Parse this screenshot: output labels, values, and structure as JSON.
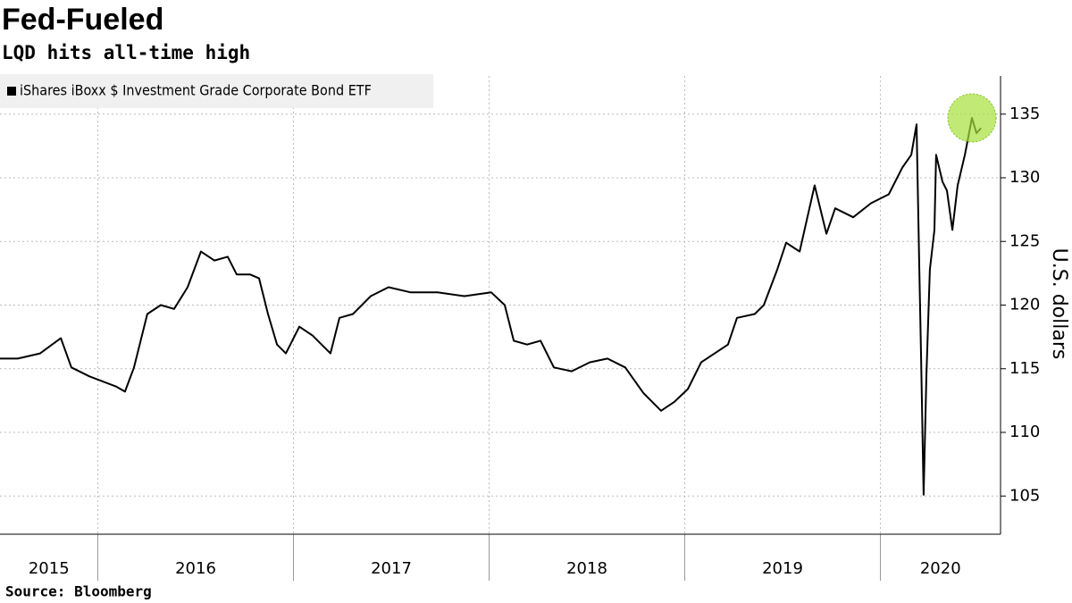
{
  "chart_data": {
    "type": "line",
    "title": "Fed-Fueled",
    "subtitle": "LQD hits all-time high",
    "y_label": "U.S. dollars",
    "source": "Source: Bloomberg",
    "x": [
      2015.5,
      2015.591,
      2015.705,
      2015.811,
      2015.865,
      2015.957,
      2016.094,
      2016.139,
      2016.185,
      2016.253,
      2016.322,
      2016.39,
      2016.459,
      2016.527,
      2016.596,
      2016.664,
      2016.71,
      2016.779,
      2016.824,
      2016.87,
      2016.916,
      2016.961,
      2017.03,
      2017.098,
      2017.189,
      2017.235,
      2017.304,
      2017.395,
      2017.486,
      2017.6,
      2017.737,
      2017.874,
      2018.011,
      2018.08,
      2018.126,
      2018.194,
      2018.263,
      2018.331,
      2018.422,
      2018.514,
      2018.605,
      2018.696,
      2018.788,
      2018.879,
      2018.947,
      2019.016,
      2019.084,
      2019.153,
      2019.221,
      2019.267,
      2019.358,
      2019.404,
      2019.473,
      2019.518,
      2019.587,
      2019.664,
      2019.724,
      2019.769,
      2019.861,
      2019.952,
      2020.043,
      2020.112,
      2020.158,
      2020.185,
      2020.199,
      2020.208,
      2020.221,
      2020.235,
      2020.253,
      2020.276,
      2020.285,
      2020.317,
      2020.34,
      2020.368,
      2020.395,
      2020.432,
      2020.468,
      2020.491,
      2020.514
    ],
    "series": [
      {
        "name": "iShares iBoxx $ Investment Grade Corporate Bond ETF",
        "color": "#000000",
        "values": [
          115.8,
          115.8,
          116.2,
          117.4,
          115.1,
          114.4,
          113.6,
          113.2,
          115.1,
          119.3,
          120.0,
          119.7,
          121.4,
          124.2,
          123.5,
          123.8,
          122.4,
          122.4,
          122.1,
          119.3,
          116.9,
          116.2,
          118.3,
          117.6,
          116.2,
          119.0,
          119.3,
          120.7,
          121.4,
          121.0,
          121.0,
          120.7,
          121.0,
          120.0,
          117.2,
          116.9,
          117.2,
          115.1,
          114.8,
          115.5,
          115.8,
          115.1,
          113.1,
          111.7,
          112.4,
          113.4,
          115.5,
          116.2,
          116.9,
          119.0,
          119.3,
          120.0,
          122.8,
          124.9,
          124.2,
          129.4,
          125.6,
          127.6,
          126.9,
          128.0,
          128.7,
          130.8,
          131.8,
          134.2,
          122.8,
          115.8,
          105.1,
          114.4,
          122.8,
          125.9,
          131.8,
          129.7,
          129.0,
          125.9,
          129.4,
          131.8,
          134.7,
          133.5,
          133.9
        ]
      }
    ],
    "xlim": [
      2015.5,
      2020.614
    ],
    "xticks": [
      2016,
      2017,
      2018,
      2019,
      2020
    ],
    "years": [
      2015,
      2016,
      2017,
      2018,
      2019,
      2020
    ],
    "ylim": [
      102,
      138
    ],
    "yticks": [
      105,
      110,
      115,
      120,
      125,
      130,
      135
    ],
    "grid": true,
    "legend": "top-left",
    "highlight_color": "#a6e03c"
  }
}
